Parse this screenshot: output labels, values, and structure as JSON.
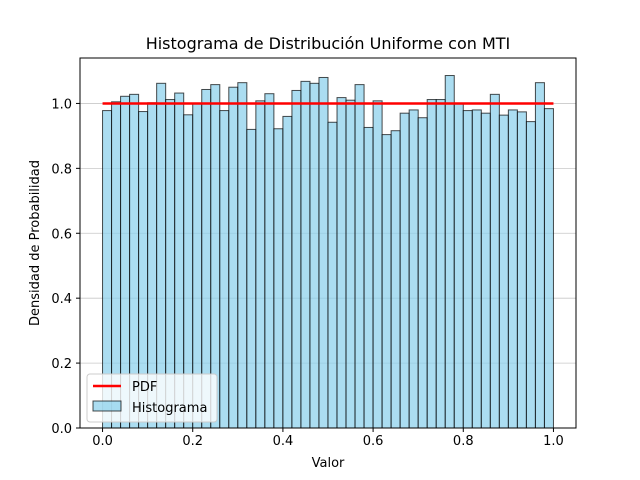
{
  "chart_data": {
    "type": "bar",
    "title": "Histograma de Distribución Uniforme con MTI",
    "xlabel": "Valor",
    "ylabel": "Densidad de Probabilidad",
    "xlim": [
      -0.05,
      1.05
    ],
    "ylim": [
      0,
      1.14
    ],
    "xticks": [
      0.0,
      0.2,
      0.4,
      0.6,
      0.8,
      1.0
    ],
    "xtick_labels": [
      "0.0",
      "0.2",
      "0.4",
      "0.6",
      "0.8",
      "1.0"
    ],
    "yticks": [
      0.0,
      0.2,
      0.4,
      0.6,
      0.8,
      1.0
    ],
    "ytick_labels": [
      "0.0",
      "0.2",
      "0.4",
      "0.6",
      "0.8",
      "1.0"
    ],
    "grid": "y-axis only",
    "legend_position": "lower-left",
    "bin_range": [
      0.0,
      1.0
    ],
    "series": [
      {
        "name": "Histograma",
        "type": "histogram",
        "color": "#87ceeb",
        "edge_color": "#000000",
        "values": [
          0.978,
          1.005,
          1.022,
          1.028,
          0.975,
          1.002,
          1.062,
          1.012,
          1.032,
          0.965,
          1.0,
          1.043,
          1.058,
          0.978,
          1.05,
          1.064,
          0.92,
          1.008,
          1.03,
          0.922,
          0.96,
          1.04,
          1.068,
          1.062,
          1.08,
          0.942,
          1.018,
          1.01,
          1.058,
          0.926,
          1.008,
          0.904,
          0.916,
          0.97,
          0.98,
          0.956,
          1.012,
          1.012,
          1.086,
          1.0,
          0.978,
          0.98,
          0.97,
          1.028,
          0.964,
          0.98,
          0.974,
          0.944,
          1.064,
          0.984
        ]
      },
      {
        "name": "PDF",
        "type": "line",
        "color": "#ff0000",
        "x": [
          0.0,
          1.0
        ],
        "y": [
          1.0,
          1.0
        ]
      }
    ]
  }
}
